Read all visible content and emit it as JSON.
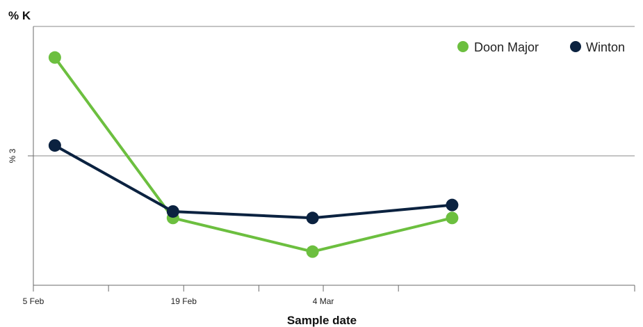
{
  "chart_data": {
    "type": "line",
    "x_tick_labels": [
      "5 Feb",
      "19 Feb",
      "4 Mar"
    ],
    "y_tick_labels": [
      "% 3"
    ],
    "ylabel": "% K",
    "xlabel": "Sample date",
    "xlim": [
      "5 Feb",
      "2 Apr"
    ],
    "ylim": [
      2,
      4
    ],
    "grid": "horizontal",
    "legend_position": "top-right",
    "series": [
      {
        "name": "Doon Major",
        "color": "#6cbf3f",
        "x": [
          "7 Feb",
          "18 Feb",
          "3 Mar",
          "16 Mar"
        ],
        "y": [
          3.76,
          2.52,
          2.26,
          2.52
        ]
      },
      {
        "name": "Winton",
        "color": "#0b2240",
        "x": [
          "7 Feb",
          "18 Feb",
          "3 Mar",
          "16 Mar"
        ],
        "y": [
          3.08,
          2.57,
          2.52,
          2.62
        ]
      }
    ]
  }
}
